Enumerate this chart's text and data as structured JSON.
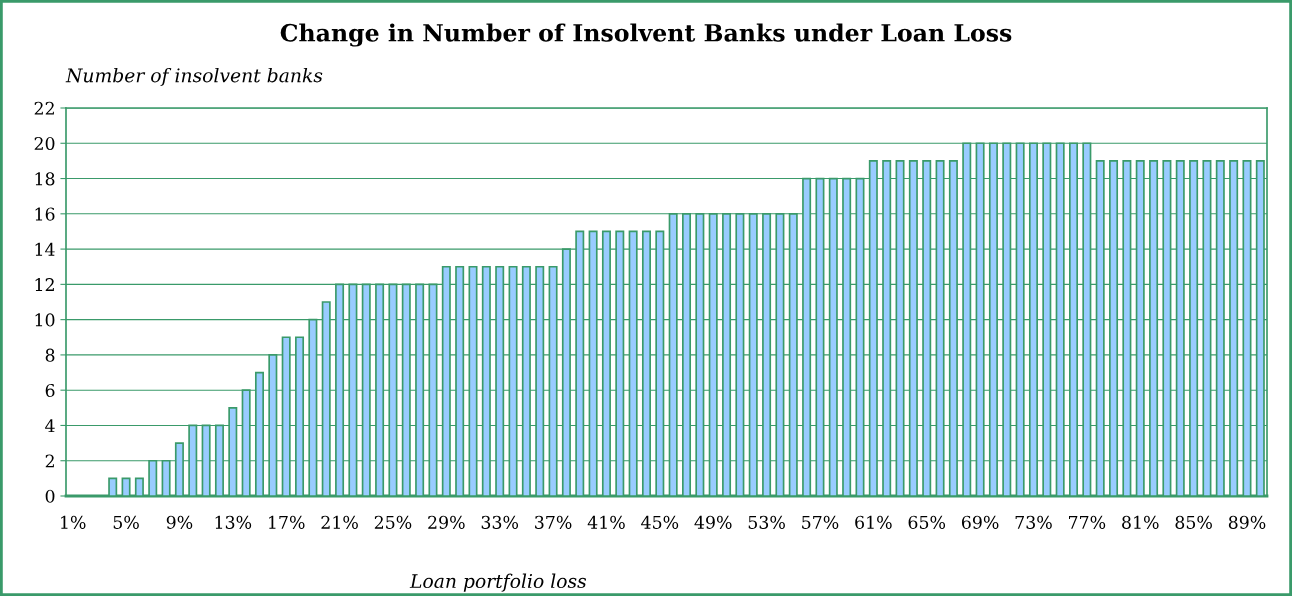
{
  "chart_data": {
    "type": "bar",
    "title": "Change in Number of Insolvent Banks under Loan Loss",
    "xlabel": "Loan portfolio loss",
    "ylabel": "Number of insolvent banks",
    "categories": [
      "1%",
      null,
      null,
      null,
      "5%",
      null,
      null,
      null,
      "9%",
      null,
      null,
      null,
      "13%",
      null,
      null,
      null,
      "17%",
      null,
      null,
      null,
      "21%",
      null,
      null,
      null,
      "25%",
      null,
      null,
      null,
      "29%",
      null,
      null,
      null,
      "33%",
      null,
      null,
      null,
      "37%",
      null,
      null,
      null,
      "41%",
      null,
      null,
      null,
      "45%",
      null,
      null,
      null,
      "49%",
      null,
      null,
      null,
      "53%",
      null,
      null,
      null,
      "57%",
      null,
      null,
      null,
      "61%",
      null,
      null,
      null,
      "65%",
      null,
      null,
      null,
      "69%",
      null,
      null,
      null,
      "73%",
      null,
      null,
      null,
      "77%",
      null,
      null,
      null,
      "81%",
      null,
      null,
      null,
      "85%",
      null,
      null,
      null,
      "89%",
      null
    ],
    "values": [
      0,
      0,
      0,
      1,
      1,
      1,
      2,
      2,
      3,
      4,
      4,
      4,
      5,
      6,
      7,
      8,
      9,
      9,
      10,
      11,
      12,
      12,
      12,
      12,
      12,
      12,
      12,
      12,
      13,
      13,
      13,
      13,
      13,
      13,
      13,
      13,
      13,
      14,
      15,
      15,
      15,
      15,
      15,
      15,
      15,
      16,
      16,
      16,
      16,
      16,
      16,
      16,
      16,
      16,
      16,
      18,
      18,
      18,
      18,
      18,
      19,
      19,
      19,
      19,
      19,
      19,
      19,
      20,
      20,
      20,
      20,
      20,
      20,
      20,
      20,
      20,
      20,
      19,
      19,
      19,
      19,
      19,
      19,
      19,
      19,
      19,
      19,
      19,
      19,
      19
    ],
    "color": "#99ccff",
    "ylim": [
      0,
      22
    ],
    "yticks": [
      0,
      2,
      4,
      6,
      8,
      10,
      12,
      14,
      16,
      18,
      20,
      22
    ],
    "grid": "y"
  }
}
